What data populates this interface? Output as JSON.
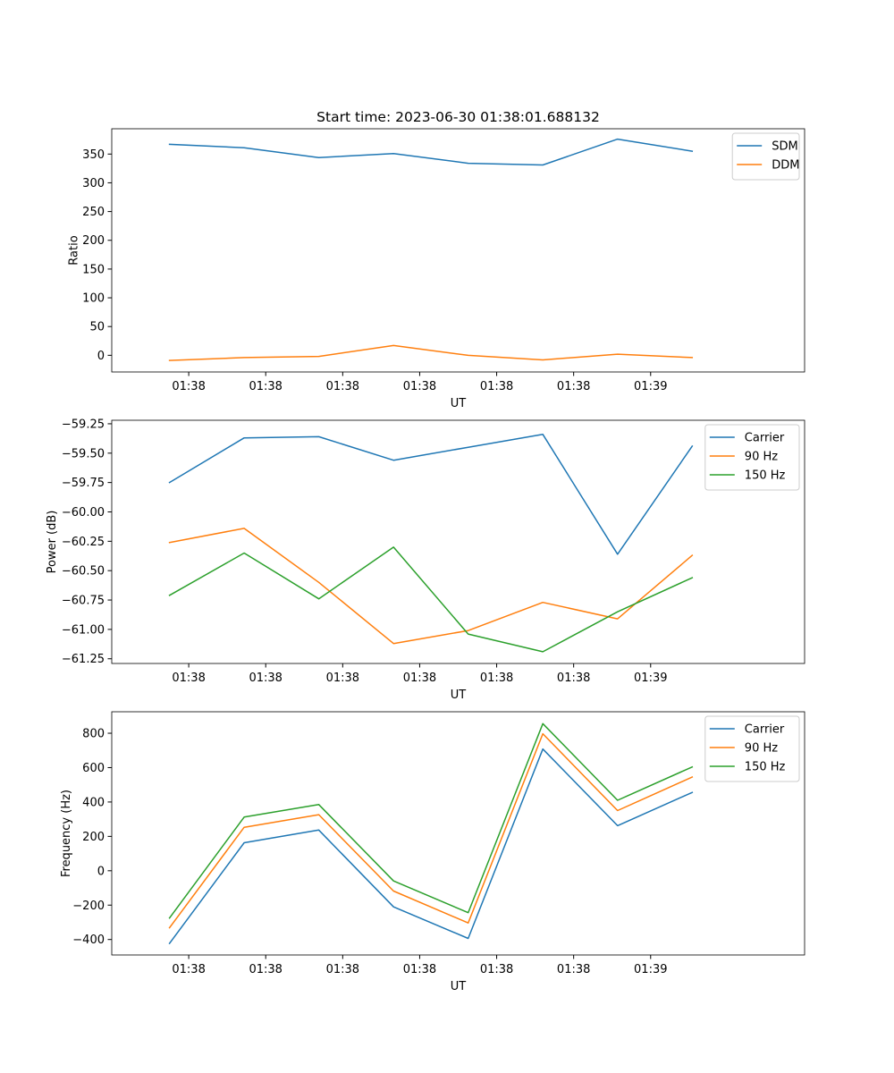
{
  "title": "Start time: 2023-06-30 01:38:01.688132",
  "chart_data": [
    {
      "type": "line",
      "xlabel": "UT",
      "ylabel": "Ratio",
      "xlim": [
        0,
        9
      ],
      "x_tick_labels": [
        "01:38",
        "01:38",
        "01:38",
        "01:38",
        "01:38",
        "01:38",
        "01:39"
      ],
      "x": [
        0.75,
        1.72,
        2.69,
        3.66,
        4.63,
        5.6,
        6.57,
        7.54
      ],
      "ylim": [
        -29,
        394
      ],
      "yticks": [
        0,
        50,
        100,
        150,
        200,
        250,
        300,
        350
      ],
      "ytick_labels": [
        "0",
        "50",
        "100",
        "150",
        "200",
        "250",
        "300",
        "350"
      ],
      "legend": "top-right",
      "series": [
        {
          "name": "SDM",
          "color": "#1f77b4",
          "values": [
            367,
            361,
            344,
            351,
            334,
            331,
            376,
            355
          ]
        },
        {
          "name": "DDM",
          "color": "#ff7f0e",
          "values": [
            -9,
            -4,
            -2,
            17,
            0,
            -8,
            2,
            -4
          ]
        }
      ]
    },
    {
      "type": "line",
      "xlabel": "UT",
      "ylabel": "Power (dB)",
      "xlim": [
        0,
        9
      ],
      "x_tick_labels": [
        "01:38",
        "01:38",
        "01:38",
        "01:38",
        "01:38",
        "01:38",
        "01:39"
      ],
      "x": [
        0.75,
        1.72,
        2.69,
        3.66,
        4.63,
        5.6,
        6.57,
        7.54
      ],
      "ylim": [
        -61.29,
        -59.22
      ],
      "yticks": [
        -61.25,
        -61.0,
        -60.75,
        -60.5,
        -60.25,
        -60.0,
        -59.75,
        -59.5,
        -59.25
      ],
      "ytick_labels": [
        "−61.25",
        "−61.00",
        "−60.75",
        "−60.50",
        "−60.25",
        "−60.00",
        "−59.75",
        "−59.50",
        "−59.25"
      ],
      "legend": "top-right",
      "series": [
        {
          "name": "Carrier",
          "color": "#1f77b4",
          "values": [
            -59.75,
            -59.37,
            -59.36,
            -59.56,
            -59.45,
            -59.34,
            -60.36,
            -59.44
          ]
        },
        {
          "name": "90 Hz",
          "color": "#ff7f0e",
          "values": [
            -60.26,
            -60.14,
            -60.6,
            -61.12,
            -61.01,
            -60.77,
            -60.91,
            -60.37
          ]
        },
        {
          "name": "150 Hz",
          "color": "#2ca02c",
          "values": [
            -60.71,
            -60.35,
            -60.74,
            -60.3,
            -61.04,
            -61.19,
            -60.85,
            -60.56
          ]
        }
      ]
    },
    {
      "type": "line",
      "xlabel": "UT",
      "ylabel": "Frequency (Hz)",
      "xlim": [
        0,
        9
      ],
      "x_tick_labels": [
        "01:38",
        "01:38",
        "01:38",
        "01:38",
        "01:38",
        "01:38",
        "01:39"
      ],
      "x": [
        0.75,
        1.72,
        2.69,
        3.66,
        4.63,
        5.6,
        6.57,
        7.54
      ],
      "ylim": [
        -490,
        925
      ],
      "yticks": [
        -400,
        -200,
        0,
        200,
        400,
        600,
        800
      ],
      "ytick_labels": [
        "−400",
        "−200",
        "0",
        "200",
        "400",
        "600",
        "800"
      ],
      "legend": "top-right",
      "series": [
        {
          "name": "Carrier",
          "color": "#1f77b4",
          "values": [
            -423,
            163,
            237,
            -210,
            -394,
            708,
            262,
            456
          ]
        },
        {
          "name": "90 Hz",
          "color": "#ff7f0e",
          "values": [
            -332,
            253,
            326,
            -118,
            -304,
            797,
            350,
            545
          ]
        },
        {
          "name": "150 Hz",
          "color": "#2ca02c",
          "values": [
            -275,
            312,
            385,
            -59,
            -244,
            856,
            410,
            604
          ]
        }
      ]
    }
  ]
}
